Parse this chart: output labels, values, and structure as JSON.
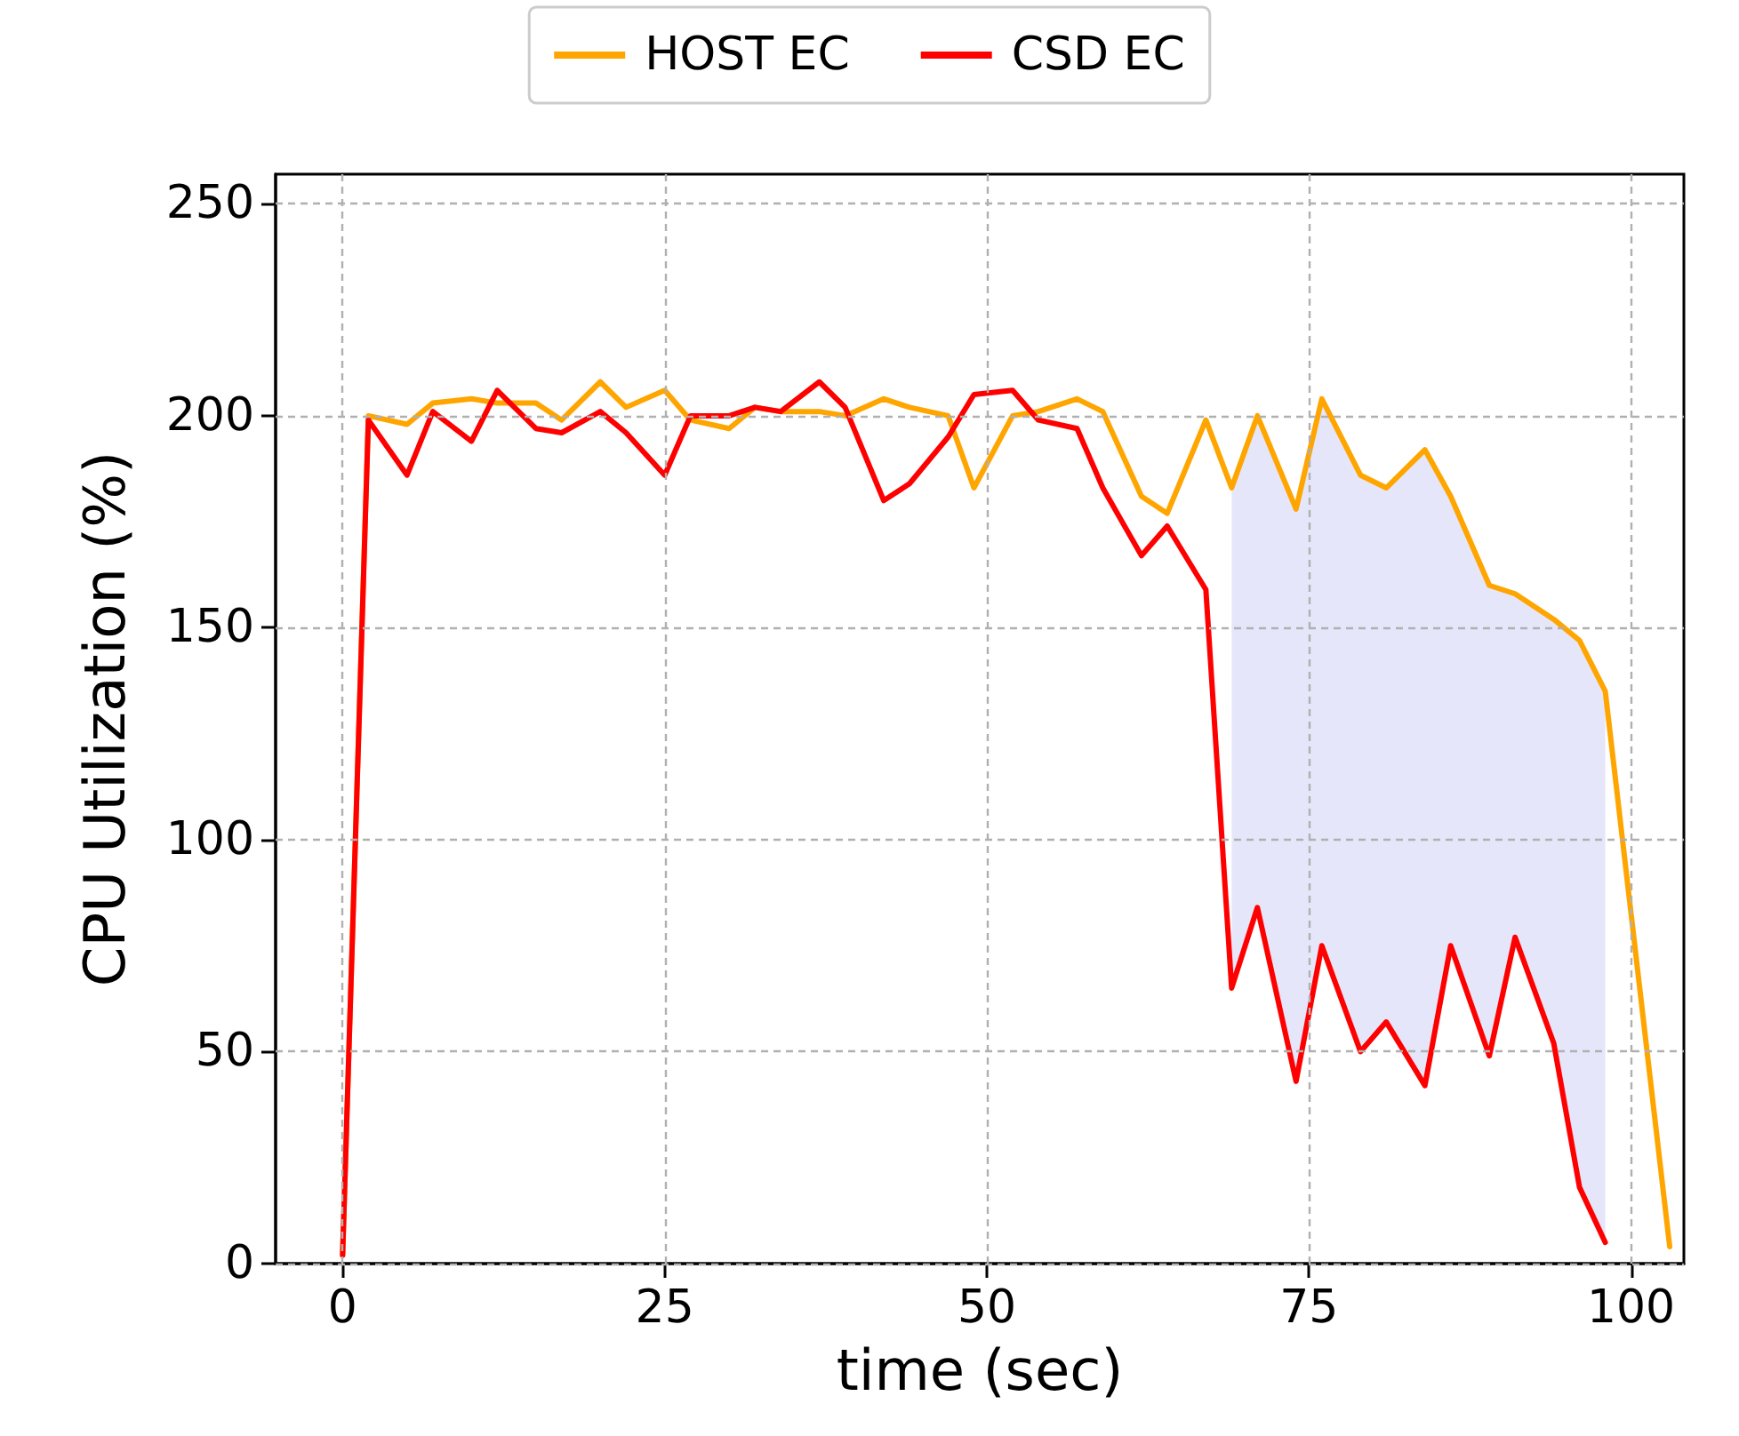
{
  "chart_data": {
    "type": "line",
    "xlabel": "time (sec)",
    "ylabel": "CPU Utilization (%)",
    "xlim": [
      -5.2,
      104.1
    ],
    "xticks": [
      0,
      25,
      50,
      75,
      100
    ],
    "ylim": [
      0,
      257
    ],
    "yticks": [
      0,
      50,
      100,
      150,
      200,
      250
    ],
    "grid": true,
    "legend": "top",
    "line_style": "solid",
    "marker": "none",
    "series": [
      {
        "name": "HOST EC",
        "color": "#ffa500",
        "x": [
          0,
          2,
          5,
          7,
          10,
          12,
          15,
          17,
          20,
          22,
          25,
          27,
          30,
          32,
          34,
          37,
          39,
          42,
          44,
          47,
          49,
          52,
          54,
          57,
          59,
          62,
          64,
          67,
          69,
          71,
          74,
          76,
          79,
          81,
          84,
          86,
          89,
          91,
          94,
          96,
          98,
          103
        ],
        "values": [
          2,
          200,
          198,
          203,
          204,
          203,
          203,
          199,
          208,
          202,
          206,
          199,
          197,
          202,
          201,
          201,
          200,
          204,
          202,
          200,
          183,
          200,
          201,
          204,
          201,
          181,
          177,
          199,
          183,
          200,
          178,
          204,
          186,
          183,
          192,
          181,
          160,
          158,
          152,
          147,
          135,
          4
        ]
      },
      {
        "name": "CSD EC",
        "color": "#ff0000",
        "x": [
          0,
          2,
          5,
          7,
          10,
          12,
          15,
          17,
          20,
          22,
          25,
          27,
          30,
          32,
          34,
          37,
          39,
          42,
          44,
          47,
          49,
          52,
          54,
          57,
          59,
          62,
          64,
          67,
          69,
          71,
          74,
          76,
          79,
          81,
          84,
          86,
          89,
          91,
          94,
          96,
          98
        ],
        "values": [
          2,
          199,
          186,
          201,
          194,
          206,
          197,
          196,
          201,
          196,
          186,
          200,
          200,
          202,
          201,
          208,
          202,
          180,
          184,
          195,
          205,
          206,
          199,
          197,
          183,
          167,
          174,
          159,
          65,
          84,
          43,
          75,
          50,
          57,
          42,
          75,
          49,
          77,
          52,
          18,
          5
        ],
        "lower": [
          null,
          null,
          null,
          null,
          null,
          null,
          null,
          null,
          null,
          null,
          null,
          null,
          null,
          null,
          null,
          null,
          null,
          null,
          null,
          null,
          null,
          null,
          null,
          null,
          null,
          null,
          null,
          null,
          65,
          84,
          43,
          75,
          50,
          57,
          42,
          75,
          49,
          77,
          52,
          18,
          5
        ],
        "upper": [
          null,
          null,
          null,
          null,
          null,
          null,
          null,
          null,
          null,
          null,
          null,
          null,
          null,
          null,
          null,
          null,
          null,
          null,
          null,
          null,
          null,
          null,
          null,
          null,
          null,
          null,
          null,
          null,
          183,
          200,
          178,
          204,
          186,
          183,
          192,
          181,
          160,
          158,
          152,
          147,
          135
        ]
      }
    ]
  }
}
